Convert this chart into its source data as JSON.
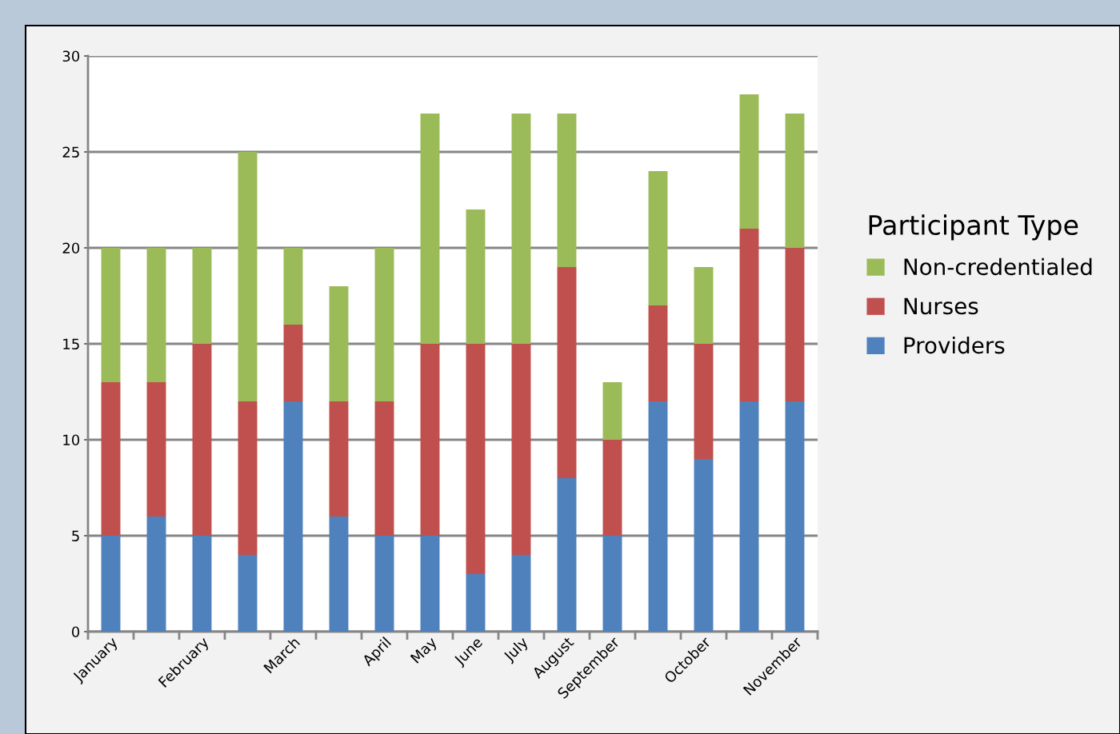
{
  "chart_data": {
    "type": "bar",
    "stacked": true,
    "legend_title": "Participant Type",
    "legend": "right",
    "grid": "y",
    "categories": [
      "January",
      null,
      "February",
      null,
      "March",
      null,
      "April",
      "May",
      "June",
      "July",
      "August",
      "September",
      null,
      "October",
      null,
      "November"
    ],
    "series": [
      {
        "name": "Providers",
        "color": "#4f81bd",
        "values": [
          5,
          6,
          5,
          4,
          12,
          6,
          5,
          5,
          3,
          4,
          8,
          5,
          12,
          9,
          12,
          12
        ]
      },
      {
        "name": "Nurses",
        "color": "#c0504d",
        "values": [
          8,
          7,
          10,
          8,
          4,
          6,
          7,
          10,
          12,
          11,
          11,
          5,
          5,
          6,
          9,
          8
        ]
      },
      {
        "name": "Non-credentialed",
        "color": "#9bbb59",
        "values": [
          7,
          7,
          5,
          13,
          4,
          6,
          8,
          12,
          7,
          12,
          8,
          3,
          7,
          4,
          7,
          7
        ]
      }
    ],
    "ylim": [
      0,
      30
    ],
    "yticks": [
      0,
      5,
      10,
      15,
      20,
      25,
      30
    ]
  }
}
